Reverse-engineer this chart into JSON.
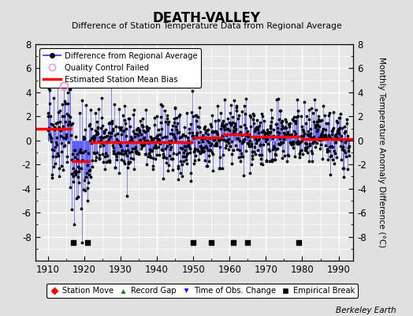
{
  "title": "DEATH-VALLEY",
  "subtitle": "Difference of Station Temperature Data from Regional Average",
  "ylabel": "Monthly Temperature Anomaly Difference (°C)",
  "xlabel_ticks": [
    1910,
    1920,
    1930,
    1940,
    1950,
    1960,
    1970,
    1980,
    1990
  ],
  "ylim": [
    -10,
    8
  ],
  "yticks": [
    -8,
    -6,
    -4,
    -2,
    0,
    2,
    4,
    6,
    8
  ],
  "xlim": [
    1906.5,
    1994
  ],
  "background_color": "#e0e0e0",
  "plot_bg_color": "#e8e8e8",
  "grid_color": "#ffffff",
  "line_color": "#5555ff",
  "dot_color": "#000000",
  "bias_color": "#ff0000",
  "watermark": "Berkeley Earth",
  "segments": [
    {
      "x_start": 1906.5,
      "x_end": 1916.5,
      "bias": 1.0
    },
    {
      "x_start": 1916.5,
      "x_end": 1921.5,
      "bias": -1.7
    },
    {
      "x_start": 1921.5,
      "x_end": 1950.0,
      "bias": -0.15
    },
    {
      "x_start": 1950.0,
      "x_end": 1958.0,
      "bias": 0.25
    },
    {
      "x_start": 1958.0,
      "x_end": 1961.5,
      "bias": 0.5
    },
    {
      "x_start": 1961.5,
      "x_end": 1965.5,
      "bias": 0.5
    },
    {
      "x_start": 1965.5,
      "x_end": 1979.5,
      "bias": 0.3
    },
    {
      "x_start": 1979.5,
      "x_end": 1994.0,
      "bias": 0.1
    }
  ],
  "empirical_break_years": [
    1917,
    1921,
    1950,
    1955,
    1961,
    1965,
    1979
  ],
  "qc_failed_years": [
    1914.5
  ],
  "qc_failed_values": [
    4.5
  ],
  "seed": 42,
  "years_start": 1910,
  "years_end": 1993
}
